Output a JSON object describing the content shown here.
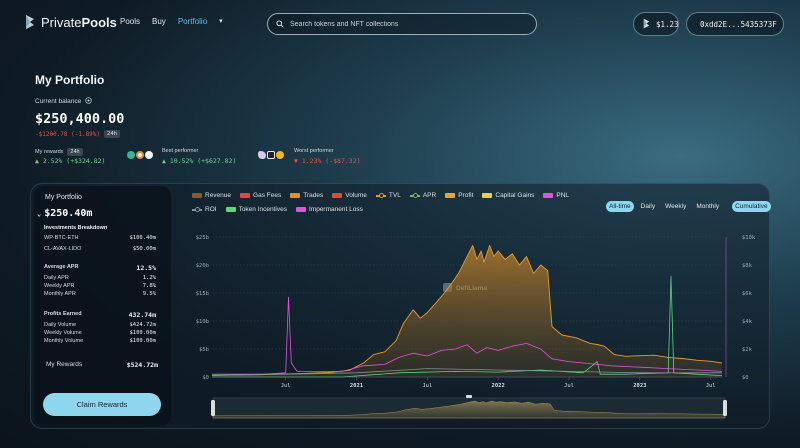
{
  "brand": {
    "name_light": "Private",
    "name_bold": "Pools"
  },
  "nav": {
    "links": [
      {
        "label": "Pools",
        "active": false
      },
      {
        "label": "Buy",
        "active": false
      },
      {
        "label": "Portfolio",
        "active": true
      }
    ],
    "more_icon": "chevron-down-icon"
  },
  "search": {
    "placeholder": "Search tokens and NFT collections",
    "value": ""
  },
  "header_right": {
    "price": "$1.23",
    "wallet": "0xdd2E...5435373F"
  },
  "portfolio": {
    "title": "My Portfolio",
    "balance_label": "Current balance",
    "balance": "$250,400.00",
    "change": "-$1200.78 (-1.89%)",
    "change_period": "24h",
    "rewards_label": "My rewards",
    "rewards_period": "24h",
    "rewards_value": "▲ 2.52% (+$324.82)",
    "best_label": "Best performer",
    "best_value": "▲ 10.52% (+$627.82)",
    "worst_label": "Worst performer",
    "worst_value": "▼ 1.23% (-$87.32)"
  },
  "summary": {
    "title": "My Portfolio",
    "total": "$250.40m",
    "breakdown_title": "Investments Breakdown",
    "breakdown": [
      {
        "label": "WP-BTC-ETH",
        "value": "$100.40m"
      },
      {
        "label": "CL-AVAX-LIDO",
        "value": "$50.00m"
      }
    ],
    "apr": {
      "label": "Average APR",
      "value": "12.5%"
    },
    "apr_rows": [
      {
        "label": "Daily APR",
        "value": "1.2%"
      },
      {
        "label": "Weekly APR",
        "value": "7.8%"
      },
      {
        "label": "Monthly APR",
        "value": "9.5%"
      }
    ],
    "profits": {
      "label": "Profits Earned",
      "value": "432.74m"
    },
    "profit_rows": [
      {
        "label": "Daily Volume",
        "value": "$424.72m"
      },
      {
        "label": "Weekly Volume",
        "value": "$100.00m"
      },
      {
        "label": "Monthly Volume",
        "value": "$100.00m"
      }
    ],
    "rewards": {
      "label": "My Rewards",
      "value": "$524.72m"
    },
    "claim_label": "Claim Rewards"
  },
  "legend": [
    {
      "label": "Revenue",
      "color": "#8a5a2b",
      "style": "bar"
    },
    {
      "label": "Gas Fees",
      "color": "#e5473c",
      "style": "bar"
    },
    {
      "label": "Trades",
      "color": "#f08a24",
      "style": "bar"
    },
    {
      "label": "Volume",
      "color": "#e5473c",
      "style": "bar"
    },
    {
      "label": "TVL",
      "color": "#e59a2f",
      "style": "line"
    },
    {
      "label": "APR",
      "color": "#79b26a",
      "style": "line"
    },
    {
      "label": "Profit",
      "color": "#f0a22e",
      "style": "bar"
    },
    {
      "label": "Capital Gains",
      "color": "#f2c94c",
      "style": "bar"
    },
    {
      "label": "PNL",
      "color": "#e055d8",
      "style": "bar"
    },
    {
      "label": "ROI",
      "color": "#8391a0",
      "style": "line"
    },
    {
      "label": "Token Incentives",
      "color": "#5cd67a",
      "style": "bar"
    },
    {
      "label": "Impermanent Loss",
      "color": "#e055d8",
      "style": "bar"
    }
  ],
  "ranges": {
    "options": [
      "All-time",
      "Daily",
      "Weekly",
      "Monthly"
    ],
    "selected": "All-time",
    "mode": "Cumulative"
  },
  "chart_data": {
    "type": "area",
    "watermark": "DefiLlama",
    "left_axis": {
      "ticks": [
        "$0",
        "$5b",
        "$10b",
        "$15b",
        "$20b",
        "$25b"
      ],
      "range": [
        0,
        25
      ]
    },
    "right_axis": {
      "ticks": [
        "$0",
        "$2k",
        "$4k",
        "$6k",
        "$8k",
        "$10k"
      ],
      "range": [
        0,
        10
      ]
    },
    "x_ticks": [
      {
        "label": "Jul",
        "bold": false,
        "x": 2020.5
      },
      {
        "label": "2021",
        "bold": true,
        "x": 2021.0
      },
      {
        "label": "Jul",
        "bold": false,
        "x": 2021.5
      },
      {
        "label": "2022",
        "bold": true,
        "x": 2022.0
      },
      {
        "label": "Jul",
        "bold": false,
        "x": 2022.5
      },
      {
        "label": "2023",
        "bold": true,
        "x": 2023.0
      },
      {
        "label": "Jul",
        "bold": false,
        "x": 2023.5
      }
    ],
    "x_range": [
      2019.98,
      2023.58
    ],
    "series": [
      {
        "name": "TVL",
        "axis": "left",
        "color": "#e59a2f",
        "fill": true,
        "points": [
          [
            2019.98,
            0.3
          ],
          [
            2020.3,
            0.4
          ],
          [
            2020.6,
            0.6
          ],
          [
            2020.8,
            0.8
          ],
          [
            2020.95,
            1.2
          ],
          [
            2021.05,
            2.5
          ],
          [
            2021.12,
            4.0
          ],
          [
            2021.2,
            4.5
          ],
          [
            2021.28,
            6.5
          ],
          [
            2021.33,
            9.5
          ],
          [
            2021.4,
            12.0
          ],
          [
            2021.45,
            10.5
          ],
          [
            2021.5,
            11.5
          ],
          [
            2021.57,
            13.5
          ],
          [
            2021.62,
            15.0
          ],
          [
            2021.68,
            17.0
          ],
          [
            2021.72,
            18.5
          ],
          [
            2021.78,
            21.5
          ],
          [
            2021.82,
            23.5
          ],
          [
            2021.85,
            21.0
          ],
          [
            2021.88,
            22.5
          ],
          [
            2021.9,
            20.5
          ],
          [
            2021.94,
            23.5
          ],
          [
            2021.97,
            21.5
          ],
          [
            2022.0,
            22.5
          ],
          [
            2022.05,
            21.0
          ],
          [
            2022.1,
            22.0
          ],
          [
            2022.15,
            20.0
          ],
          [
            2022.2,
            21.5
          ],
          [
            2022.25,
            18.5
          ],
          [
            2022.3,
            20.0
          ],
          [
            2022.35,
            19.0
          ],
          [
            2022.38,
            9.0
          ],
          [
            2022.45,
            7.5
          ],
          [
            2022.55,
            7.0
          ],
          [
            2022.65,
            6.0
          ],
          [
            2022.7,
            5.8
          ],
          [
            2022.75,
            5.5
          ],
          [
            2022.82,
            4.0
          ],
          [
            2022.9,
            3.7
          ],
          [
            2023.0,
            3.8
          ],
          [
            2023.1,
            3.9
          ],
          [
            2023.2,
            3.5
          ],
          [
            2023.3,
            3.3
          ],
          [
            2023.4,
            3.0
          ],
          [
            2023.5,
            2.8
          ],
          [
            2023.58,
            2.5
          ]
        ]
      },
      {
        "name": "PNL",
        "axis": "right",
        "color": "#e055d8",
        "fill": false,
        "points": [
          [
            2019.98,
            0.1
          ],
          [
            2020.35,
            0.2
          ],
          [
            2020.5,
            0.3
          ],
          [
            2020.52,
            5.7
          ],
          [
            2020.54,
            1.0
          ],
          [
            2020.58,
            0.4
          ],
          [
            2020.9,
            0.4
          ],
          [
            2021.05,
            0.8
          ],
          [
            2021.2,
            0.9
          ],
          [
            2021.3,
            1.4
          ],
          [
            2021.4,
            1.7
          ],
          [
            2021.5,
            1.5
          ],
          [
            2021.6,
            1.9
          ],
          [
            2021.7,
            2.0
          ],
          [
            2021.78,
            2.3
          ],
          [
            2021.85,
            1.7
          ],
          [
            2021.92,
            2.1
          ],
          [
            2022.0,
            1.9
          ],
          [
            2022.1,
            2.2
          ],
          [
            2022.2,
            2.4
          ],
          [
            2022.3,
            2.0
          ],
          [
            2022.38,
            1.3
          ],
          [
            2022.5,
            1.1
          ],
          [
            2022.6,
            1.0
          ],
          [
            2022.7,
            0.9
          ],
          [
            2022.8,
            0.8
          ],
          [
            2023.0,
            0.7
          ],
          [
            2023.2,
            0.6
          ],
          [
            2023.4,
            0.5
          ],
          [
            2023.58,
            0.4
          ]
        ]
      },
      {
        "name": "Token Incentives",
        "axis": "right",
        "color": "#5cd67a",
        "fill": false,
        "points": [
          [
            2019.98,
            0.0
          ],
          [
            2020.9,
            0.0
          ],
          [
            2021.3,
            0.3
          ],
          [
            2021.7,
            0.4
          ],
          [
            2022.0,
            0.35
          ],
          [
            2022.3,
            0.5
          ],
          [
            2022.6,
            0.3
          ],
          [
            2022.7,
            1.1
          ],
          [
            2022.72,
            0.2
          ],
          [
            2022.9,
            0.2
          ],
          [
            2023.2,
            0.3
          ],
          [
            2023.22,
            7.2
          ],
          [
            2023.24,
            0.3
          ],
          [
            2023.4,
            0.2
          ],
          [
            2023.58,
            0.1
          ]
        ]
      },
      {
        "name": "ROI",
        "axis": "right",
        "color": "#8391a0",
        "fill": false,
        "points": [
          [
            2019.98,
            0.2
          ],
          [
            2020.5,
            0.2
          ],
          [
            2021.0,
            0.3
          ],
          [
            2021.5,
            0.6
          ],
          [
            2022.0,
            0.5
          ],
          [
            2022.5,
            0.4
          ],
          [
            2023.0,
            0.3
          ],
          [
            2023.58,
            0.3
          ]
        ]
      }
    ],
    "brush_series": "TVL"
  }
}
